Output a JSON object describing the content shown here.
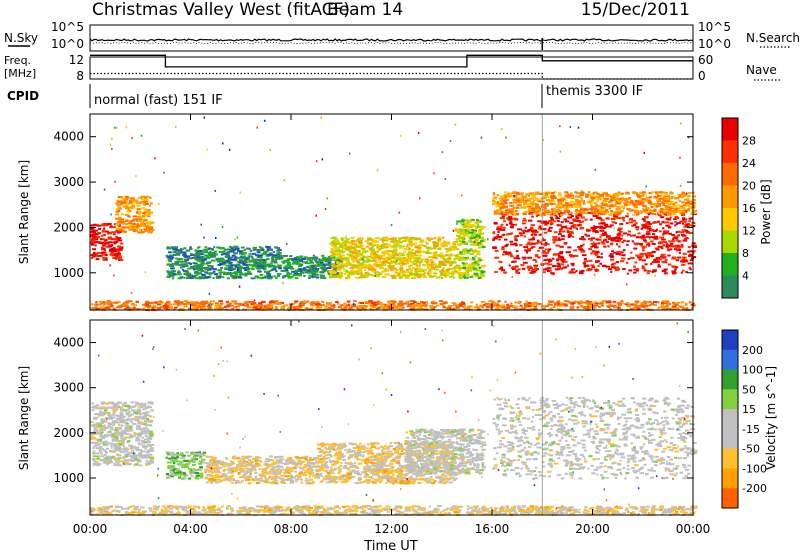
{
  "header": {
    "station": "Christmas Valley West (fitACF)",
    "beam": "Beam 14",
    "date": "15/Dec/2011"
  },
  "top_panel": {
    "left_label": "N.Sky",
    "left_ticks": [
      "10^5",
      "10^0"
    ],
    "right_ticks": [
      "10^5",
      "10^0"
    ],
    "right_label": "N.Search"
  },
  "freq_panel": {
    "left_label_1": "Freq.",
    "left_label_2": "[MHz]",
    "left_ticks": [
      "12",
      "8"
    ],
    "right_ticks": [
      "60",
      "0"
    ],
    "right_label": "Nave"
  },
  "cpid": {
    "label": "CPID",
    "mode1": "normal (fast) 151 IF",
    "mode2": "themis 3300 IF"
  },
  "x_axis": {
    "label": "Time UT",
    "ticks": [
      "00:00",
      "04:00",
      "08:00",
      "12:00",
      "16:00",
      "20:00",
      "00:00"
    ]
  },
  "power_panel": {
    "ylabel": "Slant Range [km]",
    "yticks": [
      "4000",
      "3000",
      "2000",
      "1000"
    ],
    "colorbar_label": "Power [dB]",
    "colorbar_ticks": [
      "28",
      "24",
      "20",
      "16",
      "12",
      "8",
      "4"
    ],
    "colors": [
      "#e80000",
      "#ff3000",
      "#ff6a00",
      "#ff9a00",
      "#ffc800",
      "#a8d800",
      "#20b020",
      "#2e8b57",
      "#2050c0",
      "#1010e0"
    ]
  },
  "velocity_panel": {
    "ylabel": "Slant Range [km]",
    "yticks": [
      "4000",
      "3000",
      "2000",
      "1000"
    ],
    "colorbar_label": "Velocity [m s^-1]",
    "colorbar_ticks": [
      "200",
      "100",
      "50",
      "15",
      "-15",
      "-50",
      "-100",
      "-200"
    ],
    "colors": [
      "#2040c0",
      "#3070e0",
      "#30a030",
      "#80d040",
      "#c0c0c0",
      "#c0c0c0",
      "#ffc030",
      "#ffa000",
      "#ff6000",
      "#e00000"
    ]
  },
  "chart_data": [
    {
      "type": "line",
      "title": "N.Sky / N.Search",
      "xlabel": "Time UT",
      "ylim": [
        "10^0",
        "10^5"
      ],
      "series": [
        {
          "name": "N.Sky"
        },
        {
          "name": "N.Search"
        }
      ]
    },
    {
      "type": "line",
      "title": "Freq. / Nave",
      "xlabel": "Time UT",
      "x": [
        "00:00",
        "03:00",
        "15:00",
        "18:00",
        "24:00"
      ],
      "series": [
        {
          "name": "Freq. [MHz]",
          "values": [
            12.3,
            10.2,
            12.3,
            11.3,
            11.3
          ]
        },
        {
          "name": "Nave",
          "values": [
            9,
            9,
            9,
            8,
            8
          ]
        }
      ],
      "ylim": [
        8,
        12
      ]
    },
    {
      "type": "heatmap",
      "title": "Power [dB]",
      "xlabel": "Time UT",
      "ylabel": "Slant Range [km]",
      "x_range_hours": [
        0,
        24
      ],
      "y_range_km": [
        180,
        4500
      ],
      "color_range": [
        0,
        30
      ],
      "regions": [
        {
          "t": [
            0.0,
            1.2
          ],
          "r": [
            1300,
            2100
          ],
          "power": 28
        },
        {
          "t": [
            1.0,
            2.4
          ],
          "r": [
            1900,
            2700
          ],
          "power": 20
        },
        {
          "t": [
            3.0,
            7.5
          ],
          "r": [
            900,
            1600
          ],
          "power": 8
        },
        {
          "t": [
            7.5,
            10.0
          ],
          "r": [
            900,
            1400
          ],
          "power": 8
        },
        {
          "t": [
            9.5,
            14.5
          ],
          "r": [
            900,
            1800
          ],
          "power": 16
        },
        {
          "t": [
            14.5,
            15.6
          ],
          "r": [
            900,
            2200
          ],
          "power": 14
        },
        {
          "t": [
            16.0,
            24.0
          ],
          "r": [
            1000,
            2400
          ],
          "power": 28
        },
        {
          "t": [
            16.0,
            24.0
          ],
          "r": [
            2300,
            2800
          ],
          "power": 20
        },
        {
          "t": [
            0.0,
            24.0
          ],
          "r": [
            200,
            400
          ],
          "power": 22
        }
      ]
    },
    {
      "type": "heatmap",
      "title": "Velocity [m s^-1]",
      "xlabel": "Time UT",
      "ylabel": "Slant Range [km]",
      "x_range_hours": [
        0,
        24
      ],
      "y_range_km": [
        180,
        4500
      ],
      "color_range": [
        -200,
        200
      ],
      "regions": [
        {
          "t": [
            0.0,
            2.4
          ],
          "r": [
            1300,
            2700
          ],
          "velocity": 0
        },
        {
          "t": [
            3.0,
            4.5
          ],
          "r": [
            1000,
            1600
          ],
          "velocity": 60
        },
        {
          "t": [
            4.5,
            9.0
          ],
          "r": [
            900,
            1500
          ],
          "velocity": -40
        },
        {
          "t": [
            9.0,
            14.5
          ],
          "r": [
            900,
            1800
          ],
          "velocity": -40
        },
        {
          "t": [
            12.5,
            15.6
          ],
          "r": [
            1100,
            2100
          ],
          "velocity": 0
        },
        {
          "t": [
            16.0,
            24.0
          ],
          "r": [
            1000,
            2800
          ],
          "velocity": 0
        },
        {
          "t": [
            0.0,
            24.0
          ],
          "r": [
            200,
            400
          ],
          "velocity": -40
        }
      ]
    }
  ]
}
